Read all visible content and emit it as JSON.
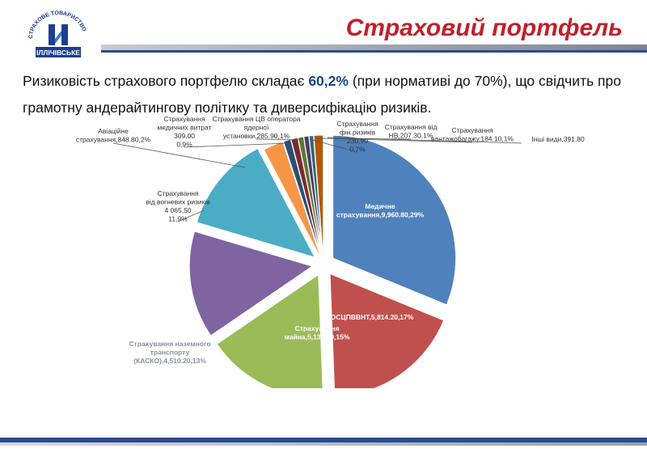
{
  "header": {
    "title": "Страховий портфель",
    "logo_arc_text": "СТРАХОВЕ ТОВАРИСТВО",
    "logo_bottom_text": "ІЛЛІЧІВСЬКЕ"
  },
  "description": {
    "part1": "Ризиковість страхового портфелю складає ",
    "highlight": "60,2%",
    "part2": "  (при нормативі до 70%), що свідчить про грамотну андерайтингову політику та диверсифікацію ризиків."
  },
  "colors": {
    "title": "#c0202a",
    "accent_bar": "#2a4a8c"
  },
  "chart_data": {
    "type": "pie",
    "slices": [
      {
        "value": 9960.8,
        "percent": 29,
        "color": "#4f81bd",
        "label": [
          "Медичне",
          "страхування,9,960.80,29%"
        ]
      },
      {
        "value": 5814.2,
        "percent": 17,
        "color": "#c0504d",
        "label": [
          "ОСЦПВВНТ,5,814.20,17%"
        ]
      },
      {
        "value": 5132.8,
        "percent": 15,
        "color": "#9bbb59",
        "label": [
          "Страхування",
          "майна,5,132.80,15%"
        ]
      },
      {
        "value": 4510.2,
        "percent": 13,
        "color": "#8064a2",
        "label": [
          "Страхування наземного",
          "транспорту",
          "(КАСКО),4,510.20,13%"
        ]
      },
      {
        "value": 4065.5,
        "percent": 11.9,
        "color": "#4bacc6",
        "label": [
          "Страхування",
          "від вогневих ризиків",
          "4 065,50",
          "11,9%"
        ]
      },
      {
        "value": 848.8,
        "percent": 2,
        "color": "#f79646",
        "label": [
          "Авіаційне",
          "страхування,848.80,2%"
        ]
      },
      {
        "value": 309.0,
        "percent": 0.9,
        "color": "#2c4d75",
        "label": [
          "Страхування",
          "медичних витрат",
          "309,00",
          "0,9%"
        ]
      },
      {
        "value": 285.9,
        "percent": 1,
        "color": "#772c2a",
        "label": [
          "Страхування ЦВ оператора",
          "ядерної",
          "установки,285.90,1%"
        ]
      },
      {
        "value": 230.9,
        "percent": 0.7,
        "color": "#5f7530",
        "label": [
          "Страхування",
          "фін.ризиків",
          "230,90",
          "0,7%"
        ]
      },
      {
        "value": 207.3,
        "percent": 1,
        "color": "#4d3b62",
        "label": [
          "Страхування від",
          "НВ,207.30,1%"
        ]
      },
      {
        "value": 184.1,
        "percent": 1,
        "color": "#276a7c",
        "label": [
          "Страхування",
          "вантажобагажу,184.10,1%"
        ]
      },
      {
        "value": 391.8,
        "percent": 1,
        "color": "#b65708",
        "label": [
          "Інші види,391.80"
        ]
      }
    ]
  }
}
